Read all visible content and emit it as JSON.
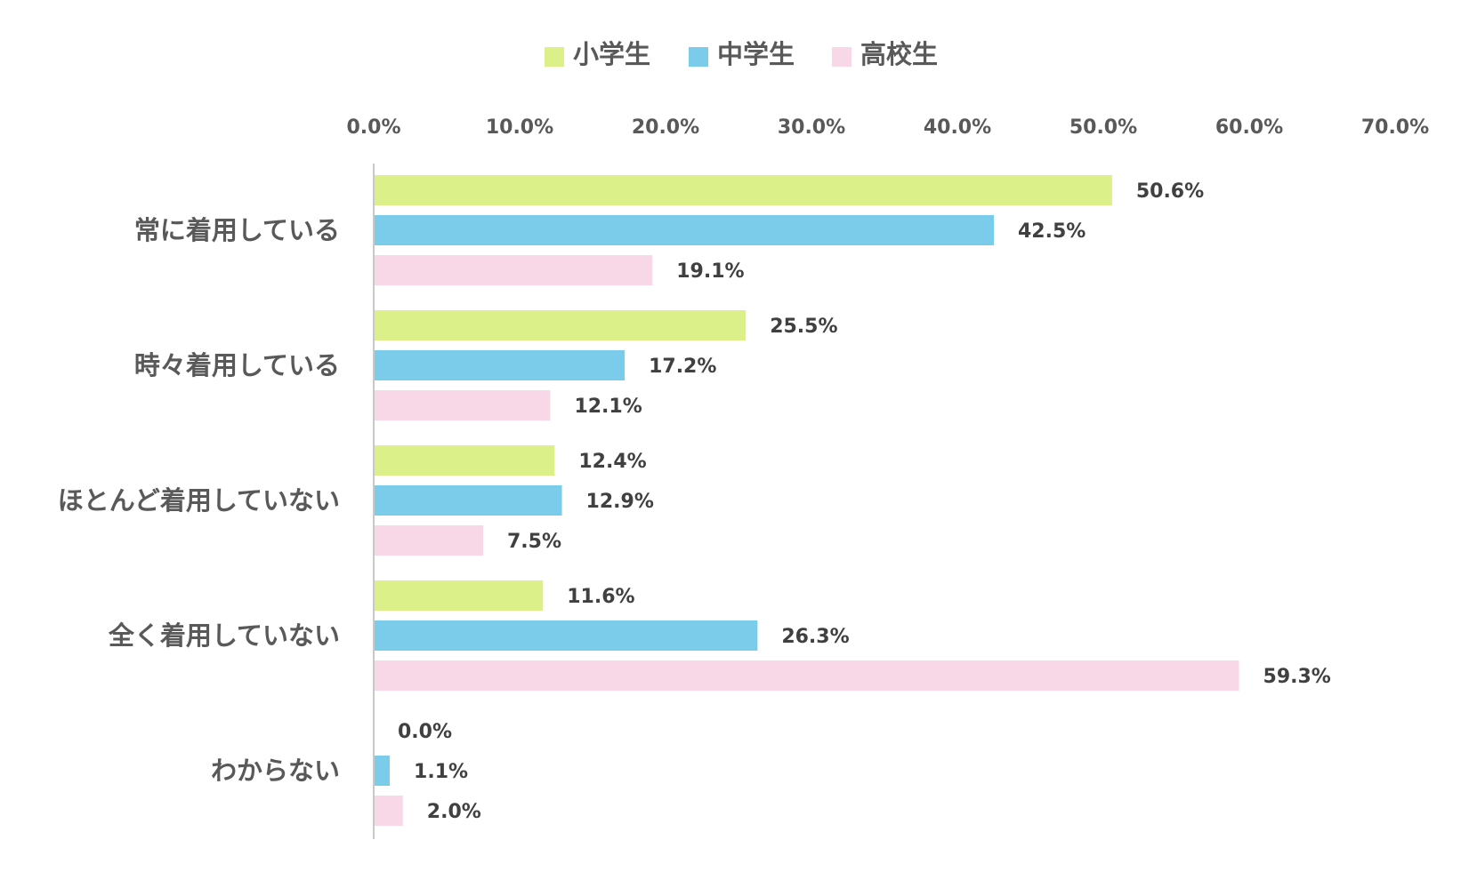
{
  "chart_data": {
    "type": "bar",
    "orientation": "horizontal",
    "categories": [
      "常に着用している",
      "時々着用している",
      "ほとんど着用していない",
      "全く着用していない",
      "わからない"
    ],
    "series": [
      {
        "name": "小学生",
        "color": "#dcf08a",
        "values": [
          50.6,
          25.5,
          12.4,
          11.6,
          0.0
        ],
        "labels": [
          "50.6%",
          "25.5%",
          "12.4%",
          "11.6%",
          "0.0%"
        ]
      },
      {
        "name": "中学生",
        "color": "#7bcbea",
        "values": [
          42.5,
          17.2,
          12.9,
          26.3,
          1.1
        ],
        "labels": [
          "42.5%",
          "17.2%",
          "12.9%",
          "26.3%",
          "1.1%"
        ]
      },
      {
        "name": "高校生",
        "color": "#f8d8e6",
        "values": [
          19.1,
          12.1,
          7.5,
          59.3,
          2.0
        ],
        "labels": [
          "19.1%",
          "12.1%",
          "7.5%",
          "59.3%",
          "2.0%"
        ]
      }
    ],
    "xlim": [
      0,
      70
    ],
    "ticks": [
      "0.0%",
      "10.0%",
      "20.0%",
      "30.0%",
      "40.0%",
      "50.0%",
      "60.0%",
      "70.0%"
    ],
    "legend_position": "top",
    "axis_position": "top",
    "grid": false
  }
}
